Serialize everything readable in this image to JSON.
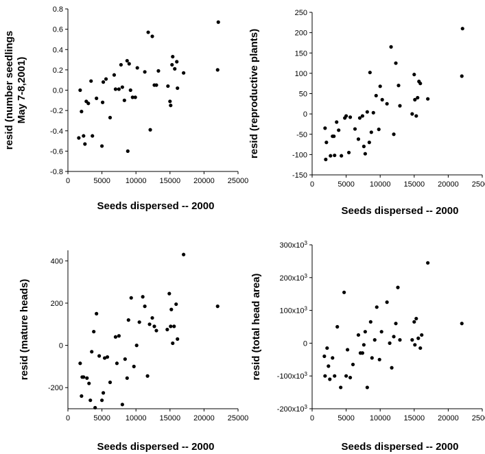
{
  "chart_data": [
    {
      "type": "scatter",
      "xlabel": "Seeds dispersed -- 2000",
      "ylabel_lines": [
        "resid (number seedlings",
        "May 7-8,2001)"
      ],
      "xlim": [
        0,
        25000
      ],
      "ylim": [
        -0.8,
        0.8
      ],
      "xticks": [
        "0",
        "5000",
        "10000",
        "15000",
        "20000",
        "25000"
      ],
      "yticks": [
        "-0.8",
        "-0.6",
        "-0.4",
        "-0.2",
        "0.0",
        "0.2",
        "0.4",
        "0.6",
        "0.8"
      ],
      "grid": false,
      "points": [
        [
          1600,
          -0.47
        ],
        [
          1800,
          0.0
        ],
        [
          2000,
          -0.21
        ],
        [
          2300,
          -0.45
        ],
        [
          2500,
          -0.53
        ],
        [
          2700,
          -0.11
        ],
        [
          3000,
          -0.13
        ],
        [
          3400,
          0.09
        ],
        [
          3600,
          -0.45
        ],
        [
          4200,
          -0.08
        ],
        [
          5000,
          -0.55
        ],
        [
          5100,
          -0.12
        ],
        [
          5200,
          0.08
        ],
        [
          5600,
          0.11
        ],
        [
          6200,
          -0.27
        ],
        [
          6800,
          0.15
        ],
        [
          7000,
          0.01
        ],
        [
          7500,
          0.01
        ],
        [
          7800,
          0.25
        ],
        [
          8000,
          0.03
        ],
        [
          8300,
          -0.1
        ],
        [
          8700,
          0.29
        ],
        [
          8800,
          -0.6
        ],
        [
          9000,
          0.26
        ],
        [
          9200,
          0.0
        ],
        [
          9500,
          -0.07
        ],
        [
          9900,
          -0.07
        ],
        [
          10200,
          0.22
        ],
        [
          11300,
          0.18
        ],
        [
          11800,
          0.57
        ],
        [
          12100,
          -0.39
        ],
        [
          12400,
          0.53
        ],
        [
          12700,
          0.05
        ],
        [
          13000,
          0.05
        ],
        [
          13300,
          0.19
        ],
        [
          14700,
          0.04
        ],
        [
          15000,
          -0.11
        ],
        [
          15100,
          -0.15
        ],
        [
          15300,
          0.25
        ],
        [
          15400,
          0.33
        ],
        [
          15700,
          0.21
        ],
        [
          16000,
          0.28
        ],
        [
          16100,
          0.02
        ],
        [
          17000,
          0.17
        ],
        [
          22000,
          0.2
        ],
        [
          22100,
          0.67
        ]
      ]
    },
    {
      "type": "scatter",
      "xlabel": "Seeds dispersed -- 2000",
      "ylabel_lines": [
        "resid (reproductive plants)"
      ],
      "xlim": [
        0,
        25000
      ],
      "ylim": [
        -150,
        250
      ],
      "xticks": [
        "0",
        "5000",
        "10000",
        "15000",
        "20000",
        "25000"
      ],
      "yticks": [
        "-150",
        "-100",
        "-50",
        "0",
        "50",
        "100",
        "150",
        "200",
        "250"
      ],
      "grid": false,
      "points": [
        [
          1900,
          -35
        ],
        [
          2000,
          -112
        ],
        [
          2100,
          -70
        ],
        [
          2700,
          -103
        ],
        [
          3000,
          -55
        ],
        [
          3200,
          -55
        ],
        [
          3300,
          -102
        ],
        [
          3600,
          -20
        ],
        [
          3900,
          -40
        ],
        [
          4300,
          -103
        ],
        [
          4800,
          -10
        ],
        [
          5000,
          -5
        ],
        [
          5400,
          -95
        ],
        [
          5600,
          -8
        ],
        [
          6300,
          -37
        ],
        [
          6800,
          -62
        ],
        [
          7000,
          -10
        ],
        [
          7400,
          -5
        ],
        [
          7600,
          -80
        ],
        [
          7800,
          -98
        ],
        [
          8100,
          5
        ],
        [
          8400,
          -70
        ],
        [
          8500,
          102
        ],
        [
          8700,
          -45
        ],
        [
          9000,
          3
        ],
        [
          9400,
          45
        ],
        [
          9800,
          -38
        ],
        [
          10000,
          68
        ],
        [
          10300,
          35
        ],
        [
          11000,
          25
        ],
        [
          11600,
          165
        ],
        [
          12000,
          -50
        ],
        [
          12300,
          125
        ],
        [
          12700,
          70
        ],
        [
          12900,
          20
        ],
        [
          14700,
          0
        ],
        [
          15000,
          97
        ],
        [
          15100,
          35
        ],
        [
          15300,
          -5
        ],
        [
          15500,
          40
        ],
        [
          15700,
          80
        ],
        [
          15900,
          75
        ],
        [
          17000,
          37
        ],
        [
          22000,
          93
        ],
        [
          22100,
          210
        ]
      ]
    },
    {
      "type": "scatter",
      "xlabel": "Seeds dispersed -- 2000",
      "ylabel_lines": [
        "resid (mature heads)"
      ],
      "xlim": [
        0,
        25000
      ],
      "ylim": [
        -300,
        450
      ],
      "xticks": [
        "0",
        "5000",
        "10000",
        "15000",
        "20000",
        "25000"
      ],
      "yticks": [
        "-200",
        "0",
        "200",
        "400"
      ],
      "grid": false,
      "points": [
        [
          1800,
          -85
        ],
        [
          2000,
          -240
        ],
        [
          2100,
          -150
        ],
        [
          2300,
          -150
        ],
        [
          2800,
          -155
        ],
        [
          3100,
          -180
        ],
        [
          3300,
          -260
        ],
        [
          3500,
          -30
        ],
        [
          3800,
          65
        ],
        [
          4000,
          -295
        ],
        [
          4200,
          150
        ],
        [
          4600,
          -50
        ],
        [
          5000,
          -260
        ],
        [
          5200,
          -225
        ],
        [
          5400,
          -60
        ],
        [
          5800,
          -55
        ],
        [
          6200,
          -175
        ],
        [
          7000,
          40
        ],
        [
          7200,
          -85
        ],
        [
          7500,
          45
        ],
        [
          8000,
          -280
        ],
        [
          8400,
          -65
        ],
        [
          8700,
          -155
        ],
        [
          8900,
          120
        ],
        [
          9300,
          225
        ],
        [
          9700,
          -100
        ],
        [
          10100,
          0
        ],
        [
          10500,
          110
        ],
        [
          11000,
          230
        ],
        [
          11300,
          185
        ],
        [
          11700,
          -145
        ],
        [
          12000,
          100
        ],
        [
          12400,
          130
        ],
        [
          12700,
          90
        ],
        [
          13000,
          70
        ],
        [
          14600,
          75
        ],
        [
          14900,
          245
        ],
        [
          15100,
          90
        ],
        [
          15200,
          170
        ],
        [
          15400,
          10
        ],
        [
          15600,
          90
        ],
        [
          15900,
          195
        ],
        [
          16100,
          30
        ],
        [
          17000,
          430
        ],
        [
          22000,
          185
        ]
      ]
    },
    {
      "type": "scatter",
      "xlabel": "Seeds dispersed -- 2000",
      "ylabel_lines": [
        "resid (total head area)"
      ],
      "xlim": [
        0,
        25000
      ],
      "ylim": [
        -200000,
        300000
      ],
      "xticks": [
        "0",
        "5000",
        "10000",
        "15000",
        "20000",
        "25000"
      ],
      "yticks": [
        "-200x10³",
        "-100x10³",
        "0",
        "100x10³",
        "200x10³",
        "300x10³"
      ],
      "grid": false,
      "points": [
        [
          1800,
          -40000
        ],
        [
          1900,
          -100000
        ],
        [
          2200,
          -15000
        ],
        [
          2400,
          -70000
        ],
        [
          2600,
          -110000
        ],
        [
          3000,
          -45000
        ],
        [
          3300,
          -100000
        ],
        [
          3700,
          50000
        ],
        [
          4200,
          -135000
        ],
        [
          4700,
          155000
        ],
        [
          5000,
          -100000
        ],
        [
          5200,
          -20000
        ],
        [
          5600,
          -105000
        ],
        [
          6000,
          -65000
        ],
        [
          6800,
          25000
        ],
        [
          7100,
          -30000
        ],
        [
          7400,
          -30000
        ],
        [
          7600,
          -5000
        ],
        [
          7800,
          35000
        ],
        [
          8100,
          -135000
        ],
        [
          8600,
          65000
        ],
        [
          8800,
          -45000
        ],
        [
          9200,
          10000
        ],
        [
          9500,
          110000
        ],
        [
          9900,
          -50000
        ],
        [
          10200,
          35000
        ],
        [
          11000,
          125000
        ],
        [
          11400,
          0
        ],
        [
          11700,
          -75000
        ],
        [
          12000,
          20000
        ],
        [
          12300,
          60000
        ],
        [
          12600,
          170000
        ],
        [
          12900,
          10000
        ],
        [
          14700,
          10000
        ],
        [
          15000,
          65000
        ],
        [
          15100,
          -5000
        ],
        [
          15300,
          75000
        ],
        [
          15600,
          15000
        ],
        [
          15900,
          -15000
        ],
        [
          16100,
          25000
        ],
        [
          17000,
          245000
        ],
        [
          22000,
          60000
        ]
      ]
    }
  ]
}
